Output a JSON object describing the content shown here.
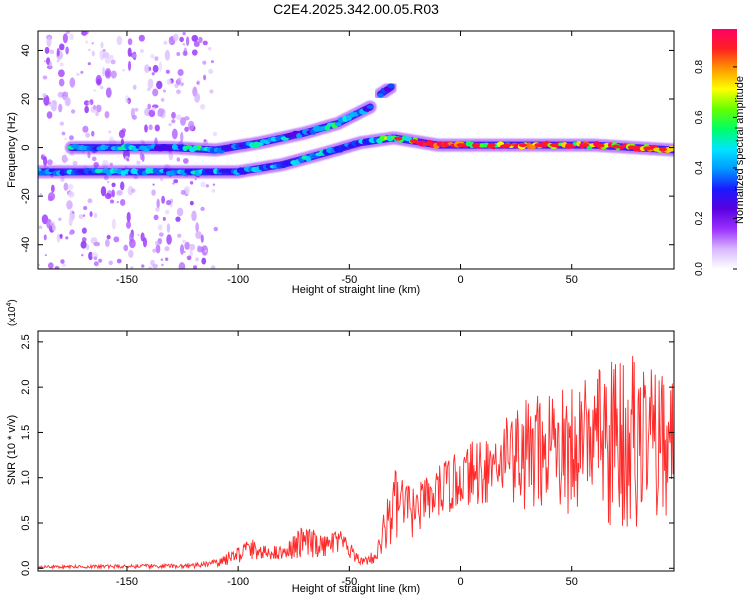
{
  "figure": {
    "title": "C2E4.2025.342.00.05.R03"
  },
  "chart_data": [
    {
      "type": "heatmap",
      "name": "spectrogram",
      "xlabel": "Height of straight line (km)",
      "ylabel": "Frequency (Hz)",
      "xlim": [
        -190,
        96
      ],
      "ylim": [
        -50,
        48
      ],
      "xticks": [
        -150,
        -100,
        -50,
        0,
        50
      ],
      "xtick_labels": [
        "-150",
        "-100",
        "-50",
        "0",
        "50"
      ],
      "yticks": [
        -40,
        -20,
        0,
        20,
        40
      ],
      "ytick_labels": [
        "-40",
        "-20",
        "0",
        "20",
        "40"
      ],
      "grid": false,
      "colorbar": {
        "label": "Normalized spectral amplitude",
        "range": [
          0,
          0.95
        ],
        "ticks": [
          0,
          0.2,
          0.4,
          0.6,
          0.8
        ],
        "tick_labels": [
          "0.0",
          "0.2",
          "0.4",
          "0.6",
          "0.8"
        ],
        "colormap": [
          "#ffffff",
          "#d9b8ff",
          "#9b30ff",
          "#5a00e0",
          "#1a1aff",
          "#0099ff",
          "#00e5ff",
          "#00ff66",
          "#66ff00",
          "#ffff00",
          "#ff9900",
          "#ff2020",
          "#ff0066"
        ]
      },
      "tracks": [
        {
          "name": "lower-branch",
          "points": [
            [
              -190,
              -10
            ],
            [
              -150,
              -10
            ],
            [
              -130,
              -10
            ],
            [
              -100,
              -10
            ],
            [
              -80,
              -7
            ],
            [
              -60,
              -2
            ],
            [
              -45,
              2
            ],
            [
              -30,
              4
            ],
            [
              -10,
              1
            ],
            [
              20,
              1
            ],
            [
              60,
              1
            ],
            [
              96,
              -1
            ]
          ]
        },
        {
          "name": "upper-branch",
          "points": [
            [
              -175,
              0
            ],
            [
              -130,
              0
            ],
            [
              -110,
              -1
            ],
            [
              -90,
              2
            ],
            [
              -70,
              6
            ],
            [
              -55,
              10
            ],
            [
              -40,
              17
            ]
          ]
        },
        {
          "name": "short-segment",
          "points": [
            [
              -36,
              22
            ],
            [
              -31,
              25
            ]
          ]
        }
      ],
      "noise_columns_x": [
        -185,
        -178,
        -166,
        -158,
        -150,
        -140,
        -133,
        -126,
        -118
      ]
    },
    {
      "type": "line",
      "name": "snr",
      "xlabel": "Height of straight line (km)",
      "ylabel": "SNR (10 * v/v)",
      "y_multiplier": "(x10",
      "y_multiplier_exp": "4",
      "y_multiplier_close": ")",
      "xlim": [
        -190,
        96
      ],
      "ylim": [
        -0.03,
        2.62
      ],
      "xticks": [
        -150,
        -100,
        -50,
        0,
        50
      ],
      "xtick_labels": [
        "-150",
        "-100",
        "-50",
        "0",
        "50"
      ],
      "yticks": [
        0,
        0.5,
        1,
        1.5,
        2,
        2.5
      ],
      "ytick_labels": [
        "0.0",
        "0.5",
        "1.0",
        "1.5",
        "2.0",
        "2.5"
      ],
      "color": "#ff2a2a",
      "grid": false,
      "envelope": [
        {
          "x": -190,
          "low": 0.0,
          "high": 0.03
        },
        {
          "x": -120,
          "low": 0.0,
          "high": 0.05
        },
        {
          "x": -110,
          "low": 0.02,
          "high": 0.1
        },
        {
          "x": -100,
          "low": 0.05,
          "high": 0.25
        },
        {
          "x": -95,
          "low": 0.1,
          "high": 0.35
        },
        {
          "x": -90,
          "low": 0.1,
          "high": 0.25
        },
        {
          "x": -80,
          "low": 0.1,
          "high": 0.25
        },
        {
          "x": -70,
          "low": 0.1,
          "high": 0.5
        },
        {
          "x": -62,
          "low": 0.12,
          "high": 0.35
        },
        {
          "x": -55,
          "low": 0.15,
          "high": 0.45
        },
        {
          "x": -50,
          "low": 0.1,
          "high": 0.3
        },
        {
          "x": -45,
          "low": 0.03,
          "high": 0.12
        },
        {
          "x": -38,
          "low": 0.05,
          "high": 0.2
        },
        {
          "x": -33,
          "low": 0.2,
          "high": 0.8
        },
        {
          "x": -30,
          "low": 0.3,
          "high": 1.1
        },
        {
          "x": -20,
          "low": 0.35,
          "high": 0.9
        },
        {
          "x": -10,
          "low": 0.5,
          "high": 1.15
        },
        {
          "x": 0,
          "low": 0.7,
          "high": 1.3
        },
        {
          "x": 10,
          "low": 0.7,
          "high": 1.5
        },
        {
          "x": 20,
          "low": 0.8,
          "high": 1.7
        },
        {
          "x": 30,
          "low": 0.6,
          "high": 1.9
        },
        {
          "x": 40,
          "low": 0.6,
          "high": 2.1
        },
        {
          "x": 55,
          "low": 0.6,
          "high": 2.1
        },
        {
          "x": 65,
          "low": 0.5,
          "high": 2.3
        },
        {
          "x": 75,
          "low": 0.4,
          "high": 2.5
        },
        {
          "x": 85,
          "low": 0.5,
          "high": 2.2
        },
        {
          "x": 96,
          "low": 0.5,
          "high": 2.2
        }
      ]
    }
  ]
}
